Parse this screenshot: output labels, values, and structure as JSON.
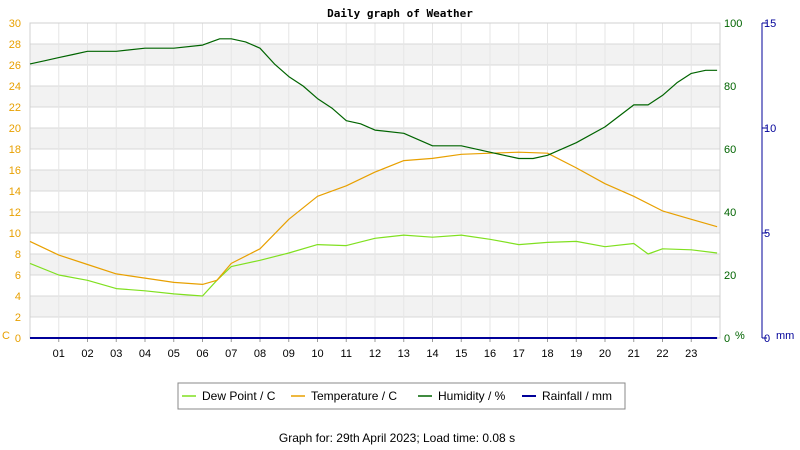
{
  "chart_data": {
    "type": "line",
    "title": "Daily graph of Weather",
    "x_ticks": [
      "01",
      "02",
      "03",
      "04",
      "05",
      "06",
      "07",
      "08",
      "09",
      "10",
      "11",
      "12",
      "13",
      "14",
      "15",
      "16",
      "17",
      "18",
      "19",
      "20",
      "21",
      "22",
      "23"
    ],
    "x_range": [
      0,
      24
    ],
    "axes": {
      "temperature": {
        "unit": "C",
        "range": [
          0,
          30
        ],
        "ticks": [
          0,
          2,
          4,
          6,
          8,
          10,
          12,
          14,
          16,
          18,
          20,
          22,
          24,
          26,
          28,
          30
        ],
        "color": "#e8a000"
      },
      "humidity": {
        "unit": "%",
        "range": [
          0,
          100
        ],
        "ticks": [
          0,
          20,
          40,
          60,
          80,
          100
        ],
        "color": "#006400"
      },
      "rainfall": {
        "unit": "mm",
        "range": [
          0,
          15
        ],
        "ticks": [
          0,
          5,
          10,
          15
        ],
        "color": "#000099"
      }
    },
    "series": [
      {
        "name": "Dew Point / C",
        "axis": "temperature",
        "color": "#80e020",
        "x": [
          0,
          1,
          2,
          3,
          4,
          5,
          6,
          6.5,
          7,
          8,
          9,
          10,
          11,
          12,
          13,
          14,
          15,
          16,
          17,
          18,
          19,
          20,
          21,
          21.5,
          22,
          23,
          23.9
        ],
        "y": [
          7.1,
          6.0,
          5.5,
          4.7,
          4.5,
          4.2,
          4.0,
          5.5,
          6.8,
          7.4,
          8.1,
          8.9,
          8.8,
          9.5,
          9.8,
          9.6,
          9.8,
          9.4,
          8.9,
          9.1,
          9.2,
          8.7,
          9.0,
          8.0,
          8.5,
          8.4,
          8.1
        ]
      },
      {
        "name": "Temperature / C",
        "axis": "temperature",
        "color": "#e8a000",
        "x": [
          0,
          1,
          2,
          3,
          4,
          5,
          6,
          6.5,
          7,
          8,
          9,
          10,
          11,
          12,
          13,
          14,
          15,
          16,
          17,
          18,
          19,
          20,
          21,
          22,
          23,
          23.9
        ],
        "y": [
          9.2,
          7.9,
          7.0,
          6.1,
          5.7,
          5.3,
          5.1,
          5.5,
          7.1,
          8.5,
          11.3,
          13.5,
          14.5,
          15.8,
          16.9,
          17.1,
          17.5,
          17.6,
          17.7,
          17.6,
          16.2,
          14.7,
          13.5,
          12.1,
          11.3,
          10.6
        ]
      },
      {
        "name": "Humidity / %",
        "axis": "humidity",
        "color": "#006400",
        "x": [
          0,
          0.5,
          1,
          1.5,
          2,
          3,
          4,
          5,
          6,
          6.6,
          7,
          7.5,
          8,
          8.5,
          9,
          9.5,
          10,
          10.5,
          11,
          11.5,
          12,
          13,
          14,
          15,
          16,
          17,
          17.5,
          18,
          19,
          20,
          21,
          21.5,
          22,
          22.5,
          23,
          23.5,
          23.9
        ],
        "y": [
          87,
          88,
          89,
          90,
          91,
          91,
          92,
          92,
          93,
          95,
          95,
          94,
          92,
          87,
          83,
          80,
          76,
          73,
          69,
          68,
          66,
          65,
          61,
          61,
          59,
          57,
          57,
          58,
          62,
          67,
          74,
          74,
          77,
          81,
          84,
          85,
          85
        ]
      },
      {
        "name": "Rainfall / mm",
        "axis": "rainfall",
        "color": "#000099",
        "x": [
          0,
          23.9
        ],
        "y": [
          0,
          0
        ]
      }
    ],
    "grid": true,
    "legend_position": "bottom"
  },
  "footer": "Graph for: 29th April 2023; Load time: 0.08 s"
}
